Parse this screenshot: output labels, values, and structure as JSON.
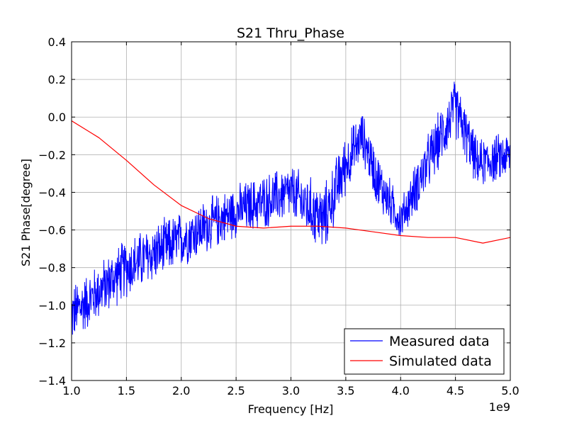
{
  "chart_data": {
    "type": "line",
    "title": "S21 Thru_Phase",
    "xlabel": "Frequency [Hz]",
    "ylabel": "S21 Phase[degree]",
    "x_offset_label": "1e9",
    "xlim": [
      1.0,
      5.0
    ],
    "ylim": [
      -1.4,
      0.4
    ],
    "x_ticks": [
      1.0,
      1.5,
      2.0,
      2.5,
      3.0,
      3.5,
      4.0,
      4.5,
      5.0
    ],
    "x_tick_labels": [
      "1.0",
      "1.5",
      "2.0",
      "2.5",
      "3.0",
      "3.5",
      "4.0",
      "4.5",
      "5.0"
    ],
    "y_ticks": [
      -1.4,
      -1.2,
      -1.0,
      -0.8,
      -0.6,
      -0.4,
      -0.2,
      0.0,
      0.2,
      0.4
    ],
    "y_tick_labels": [
      "−1.4",
      "−1.2",
      "−1.0",
      "−0.8",
      "−0.6",
      "−0.4",
      "−0.2",
      "0.0",
      "0.2",
      "0.4"
    ],
    "grid": true,
    "legend_position": "lower-right",
    "series": [
      {
        "name": "Measured data",
        "color": "#0000ff",
        "noisy": true,
        "envelope": {
          "x": [
            1.0,
            1.2,
            1.5,
            2.0,
            2.5,
            3.0,
            3.3,
            3.5,
            3.65,
            3.8,
            4.0,
            4.2,
            4.5,
            4.7,
            5.0
          ],
          "center": [
            -1.05,
            -0.95,
            -0.8,
            -0.65,
            -0.5,
            -0.4,
            -0.55,
            -0.25,
            -0.1,
            -0.35,
            -0.55,
            -0.3,
            0.05,
            -0.25,
            -0.2
          ],
          "amplitude": [
            0.15,
            0.14,
            0.15,
            0.14,
            0.13,
            0.14,
            0.17,
            0.15,
            0.12,
            0.14,
            0.1,
            0.14,
            0.15,
            0.12,
            0.12
          ]
        }
      },
      {
        "name": "Simulated data",
        "color": "#ff0000",
        "x": [
          1.0,
          1.25,
          1.5,
          1.75,
          2.0,
          2.25,
          2.5,
          2.75,
          3.0,
          3.25,
          3.5,
          3.75,
          4.0,
          4.25,
          4.5,
          4.75,
          5.0
        ],
        "y": [
          -0.02,
          -0.11,
          -0.23,
          -0.36,
          -0.47,
          -0.54,
          -0.58,
          -0.59,
          -0.58,
          -0.58,
          -0.59,
          -0.61,
          -0.63,
          -0.64,
          -0.64,
          -0.67,
          -0.64
        ]
      }
    ]
  }
}
